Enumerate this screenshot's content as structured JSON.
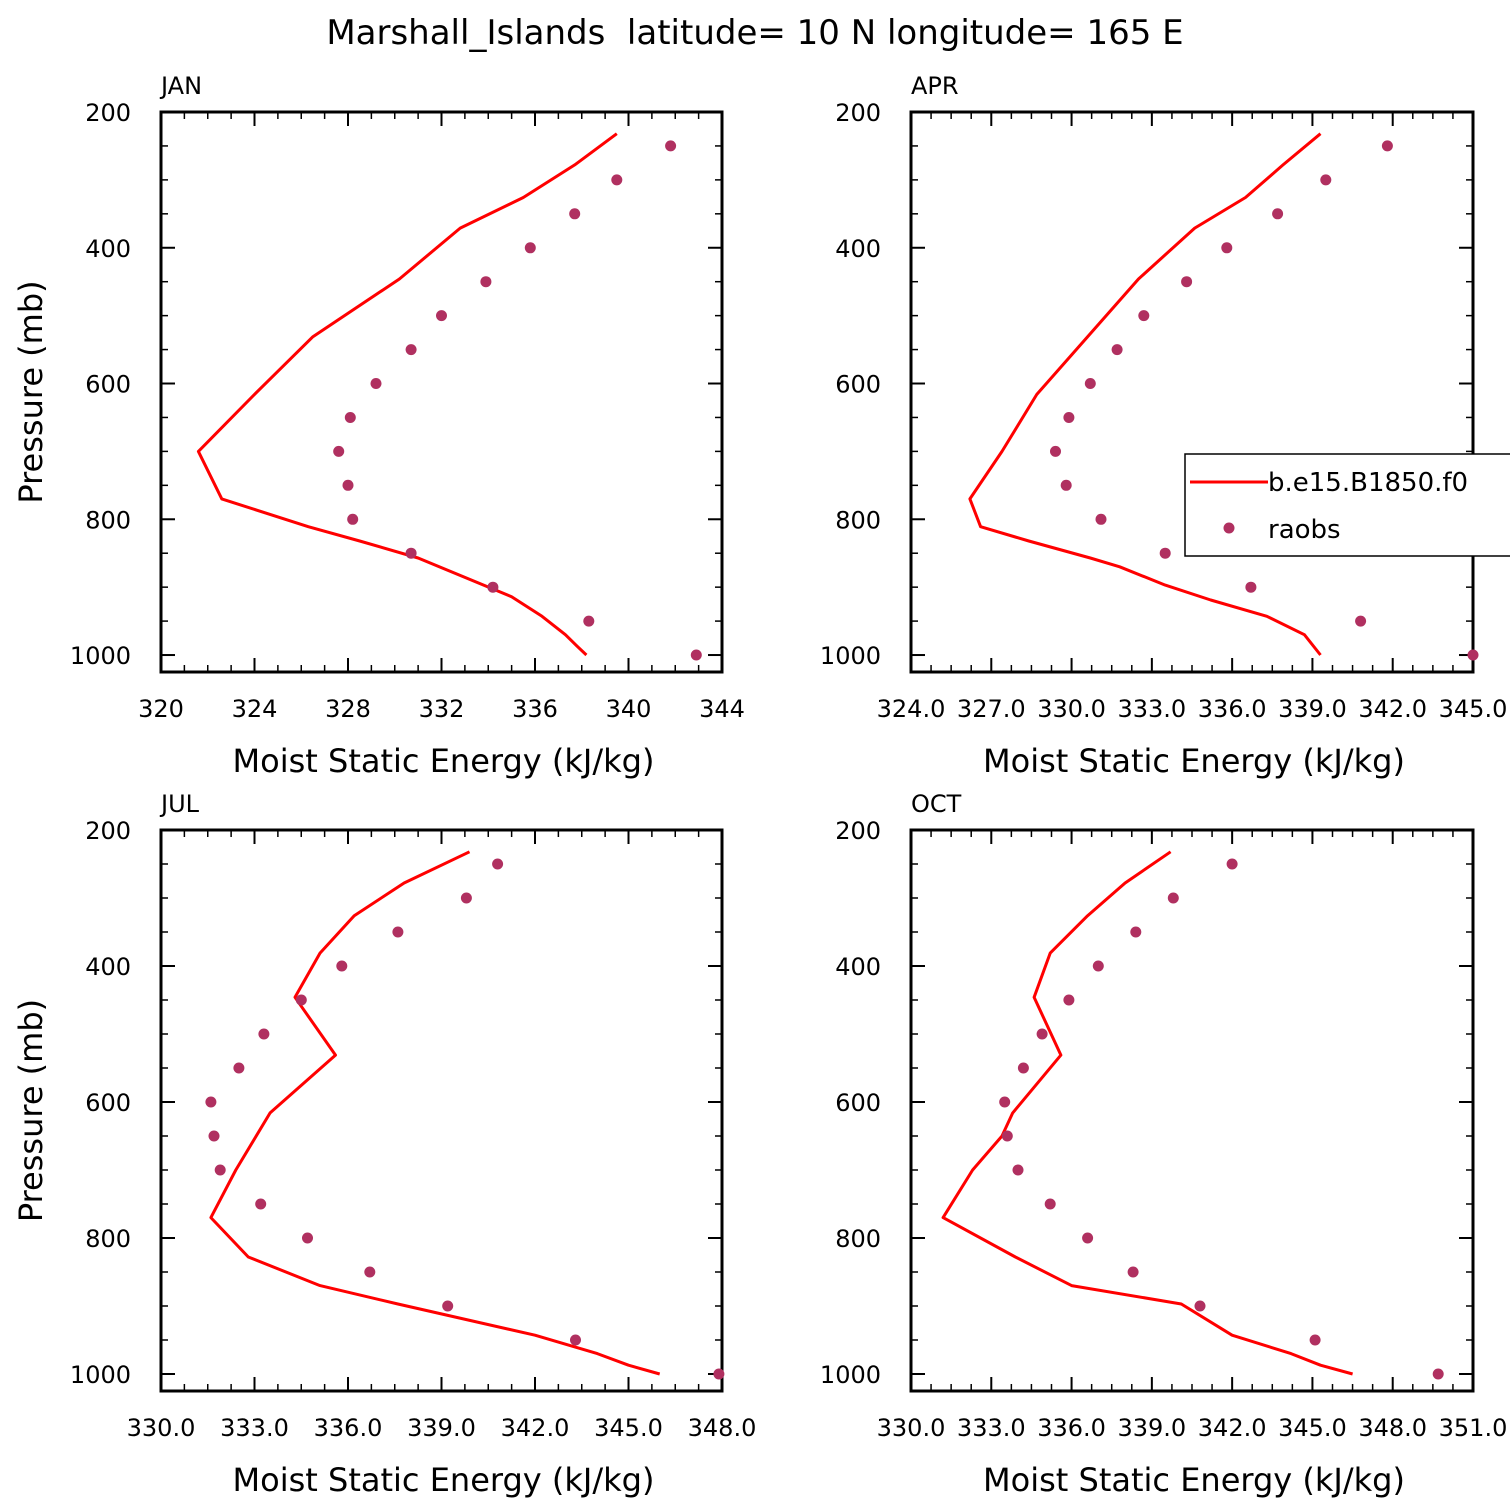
{
  "figure": {
    "title": "Marshall_Islands  latitude= 10 N longitude= 165 E",
    "legend": {
      "model_label": "b.e15.B1850.f0",
      "obs_label": "raobs",
      "placement": "inside APR panel, right edge, clipped by figure boundary"
    },
    "colors": {
      "model_line": "#ff0000",
      "obs_marker": "#b03060"
    }
  },
  "chart_data": [
    {
      "type": "line+scatter",
      "panel": "JAN",
      "xlabel": "Moist Static Energy (kJ/kg)",
      "ylabel": "Pressure (mb)",
      "xlim": [
        320,
        344
      ],
      "ylim": [
        1025,
        200
      ],
      "y_reversed": true,
      "grid": false,
      "xticks": [
        "320",
        "324",
        "328",
        "332",
        "336",
        "340",
        "344"
      ],
      "yticks": [
        "200",
        "400",
        "600",
        "800",
        "1000"
      ],
      "series": [
        {
          "name": "b.e15.B1850.f0",
          "style": "line",
          "x": [
            339.5,
            337.7,
            335.5,
            332.8,
            330.2,
            326.5,
            324.0,
            321.6,
            322.6,
            326.3,
            328.5,
            331.0,
            335.0,
            336.3,
            337.3,
            337.8,
            338.2
          ],
          "y": [
            232,
            278,
            326,
            371,
            446,
            531,
            616,
            700,
            770,
            811,
            832,
            857,
            914,
            943,
            970,
            987,
            1000
          ]
        },
        {
          "name": "raobs",
          "style": "points",
          "x": [
            341.8,
            339.5,
            337.7,
            335.8,
            333.9,
            332.0,
            330.7,
            329.2,
            328.1,
            327.6,
            328.0,
            328.2,
            330.7,
            334.2,
            338.3,
            342.9
          ],
          "y": [
            250,
            300,
            350,
            400,
            450,
            500,
            550,
            600,
            650,
            700,
            750,
            800,
            850,
            900,
            950,
            1000
          ]
        }
      ]
    },
    {
      "type": "line+scatter",
      "panel": "APR",
      "xlabel": "Moist Static Energy (kJ/kg)",
      "ylabel": "",
      "xlim": [
        324.0,
        345.0
      ],
      "ylim": [
        1025,
        200
      ],
      "y_reversed": true,
      "grid": false,
      "xticks": [
        "324.0",
        "327.0",
        "330.0",
        "333.0",
        "336.0",
        "339.0",
        "342.0",
        "345.0"
      ],
      "yticks": [
        "200",
        "400",
        "600",
        "800",
        "1000"
      ],
      "series": [
        {
          "name": "b.e15.B1850.f0",
          "style": "line",
          "x": [
            339.3,
            337.9,
            336.5,
            334.6,
            332.5,
            330.6,
            328.7,
            327.4,
            326.2,
            326.6,
            328.4,
            330.7,
            331.8,
            333.5,
            335.2,
            337.3,
            338.7,
            339.3
          ],
          "y": [
            232,
            278,
            326,
            371,
            446,
            531,
            616,
            700,
            770,
            811,
            832,
            857,
            870,
            897,
            919,
            943,
            970,
            1000
          ]
        },
        {
          "name": "raobs",
          "style": "points",
          "x": [
            341.8,
            339.5,
            337.7,
            335.8,
            334.3,
            332.7,
            331.7,
            330.7,
            329.9,
            329.4,
            329.8,
            331.1,
            333.5,
            336.7,
            340.8,
            345.0
          ],
          "y": [
            250,
            300,
            350,
            400,
            450,
            500,
            550,
            600,
            650,
            700,
            750,
            800,
            850,
            900,
            950,
            1000
          ]
        }
      ]
    },
    {
      "type": "line+scatter",
      "panel": "JUL",
      "xlabel": "Moist Static Energy (kJ/kg)",
      "ylabel": "Pressure (mb)",
      "xlim": [
        330.0,
        348.0
      ],
      "ylim": [
        1025,
        200
      ],
      "y_reversed": true,
      "grid": false,
      "xticks": [
        "330.0",
        "333.0",
        "336.0",
        "339.0",
        "342.0",
        "345.0",
        "348.0"
      ],
      "yticks": [
        "200",
        "400",
        "600",
        "800",
        "1000"
      ],
      "series": [
        {
          "name": "b.e15.B1850.f0",
          "style": "line",
          "x": [
            339.9,
            337.8,
            336.2,
            335.1,
            334.3,
            335.6,
            333.5,
            332.4,
            331.6,
            332.8,
            335.1,
            337.6,
            342.0,
            344.0,
            345.0,
            346.0
          ],
          "y": [
            232,
            278,
            326,
            381,
            446,
            531,
            616,
            700,
            770,
            828,
            870,
            897,
            943,
            970,
            987,
            1000
          ]
        },
        {
          "name": "raobs",
          "style": "points",
          "x": [
            340.8,
            339.8,
            337.6,
            335.8,
            334.5,
            333.3,
            332.5,
            331.6,
            331.7,
            331.9,
            333.2,
            334.7,
            336.7,
            339.2,
            343.3,
            347.9
          ],
          "y": [
            250,
            300,
            350,
            400,
            450,
            500,
            550,
            600,
            650,
            700,
            750,
            800,
            850,
            900,
            950,
            1000
          ]
        }
      ]
    },
    {
      "type": "line+scatter",
      "panel": "OCT",
      "xlabel": "Moist Static Energy (kJ/kg)",
      "ylabel": "",
      "xlim": [
        330.0,
        351.0
      ],
      "ylim": [
        1025,
        200
      ],
      "y_reversed": true,
      "grid": false,
      "xticks": [
        "330.0",
        "333.0",
        "336.0",
        "339.0",
        "342.0",
        "345.0",
        "348.0",
        "351.0"
      ],
      "yticks": [
        "200",
        "400",
        "600",
        "800",
        "1000"
      ],
      "series": [
        {
          "name": "b.e15.B1850.f0",
          "style": "line",
          "x": [
            339.7,
            338.0,
            336.6,
            335.2,
            334.6,
            335.6,
            333.8,
            333.4,
            332.3,
            331.2,
            333.9,
            336.0,
            340.1,
            342.0,
            344.2,
            345.3,
            346.5
          ],
          "y": [
            232,
            278,
            326,
            381,
            446,
            531,
            616,
            650,
            700,
            770,
            828,
            870,
            897,
            943,
            970,
            987,
            1000
          ]
        },
        {
          "name": "raobs",
          "style": "points",
          "x": [
            342.0,
            339.8,
            338.4,
            337.0,
            335.9,
            334.9,
            334.2,
            333.5,
            333.6,
            334.0,
            335.2,
            336.6,
            338.3,
            340.8,
            345.1,
            349.7
          ],
          "y": [
            250,
            300,
            350,
            400,
            450,
            500,
            550,
            600,
            650,
            700,
            750,
            800,
            850,
            900,
            950,
            1000
          ]
        }
      ]
    }
  ]
}
